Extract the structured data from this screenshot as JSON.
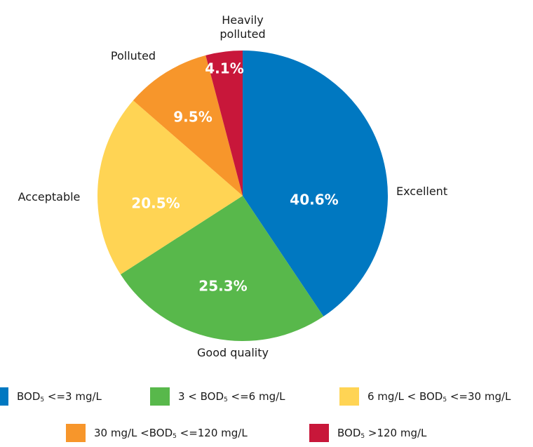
{
  "chart_data": {
    "type": "pie",
    "slices": [
      {
        "category": "Excellent",
        "value": 40.6,
        "label": "40.6%",
        "color": "#0078c1",
        "legend": {
          "pre": "BOD",
          "sub": "5",
          "post": " <=3 mg/L"
        }
      },
      {
        "category": "Good quality",
        "value": 25.3,
        "label": "25.3%",
        "color": "#58b84b",
        "legend": {
          "pre": "3 < BOD",
          "sub": "5",
          "post": " <=6 mg/L"
        }
      },
      {
        "category": "Acceptable",
        "value": 20.5,
        "label": "20.5%",
        "color": "#ffd454",
        "legend": {
          "pre": "6 mg/L < BOD",
          "sub": "5",
          "post": " <=30 mg/L"
        }
      },
      {
        "category": "Polluted",
        "value": 9.5,
        "label": "9.5%",
        "color": "#f7962b",
        "legend": {
          "pre": "30 mg/L <BOD",
          "sub": "5",
          "post": " <=120 mg/L"
        }
      },
      {
        "category": "Heavily polluted",
        "category_lines": [
          "Heavily",
          "polluted"
        ],
        "value": 4.1,
        "label": "4.1%",
        "color": "#c8173a",
        "legend": {
          "pre": "BOD",
          "sub": "5",
          "post": " >120 mg/L"
        }
      }
    ],
    "legend_placement": "bottom"
  }
}
